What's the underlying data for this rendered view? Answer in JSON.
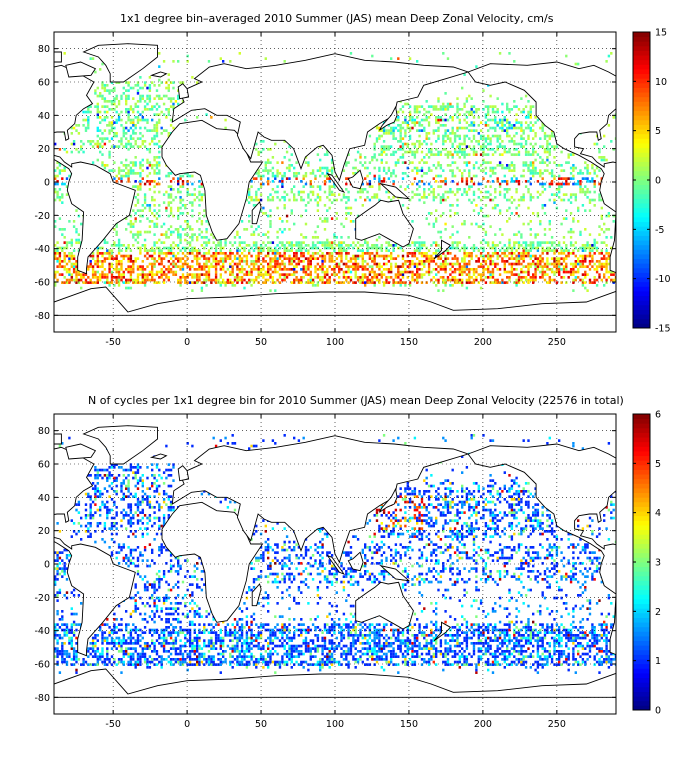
{
  "panels": [
    {
      "id": "velocity",
      "title": "1x1 degree bin–averaged 2010 Summer (JAS) mean Deep Zonal Velocity, cm/s",
      "colorbar": {
        "min": -15,
        "max": 15,
        "ticks": [
          15,
          10,
          5,
          0,
          -5,
          -10,
          -15
        ]
      }
    },
    {
      "id": "counts",
      "title": "N of cycles per 1x1 degree bin for 2010 Summer (JAS) mean Deep Zonal Velocity (22576 in total)",
      "colorbar": {
        "min": 0,
        "max": 6,
        "ticks": [
          6,
          5,
          4,
          3,
          2,
          1,
          0
        ]
      }
    }
  ],
  "chart_data": [
    {
      "type": "heatmap",
      "title": "1x1 degree bin–averaged 2010 Summer (JAS) mean Deep Zonal Velocity, cm/s",
      "xlim": [
        -90,
        290
      ],
      "ylim": [
        -90,
        90
      ],
      "xticks": [
        -50,
        0,
        50,
        100,
        150,
        200,
        250
      ],
      "yticks": [
        80,
        60,
        40,
        20,
        0,
        -20,
        -40,
        -60,
        -80
      ],
      "grid": true,
      "colormap": "jet",
      "clim": [
        -15,
        15
      ],
      "colorbar_ticks": [
        15,
        10,
        5,
        0,
        -5,
        -10,
        -15
      ]
    },
    {
      "type": "heatmap",
      "title": "N of cycles per 1x1 degree bin for 2010 Summer (JAS) mean Deep Zonal Velocity (22576 in total)",
      "total_cycles": 22576,
      "xlim": [
        -90,
        290
      ],
      "ylim": [
        -90,
        90
      ],
      "xticks": [
        -50,
        0,
        50,
        100,
        150,
        200,
        250
      ],
      "yticks": [
        80,
        60,
        40,
        20,
        0,
        -20,
        -40,
        -60,
        -80
      ],
      "grid": true,
      "colormap": "jet",
      "clim": [
        0,
        6
      ],
      "colorbar_ticks": [
        6,
        5,
        4,
        3,
        2,
        1,
        0
      ]
    }
  ]
}
